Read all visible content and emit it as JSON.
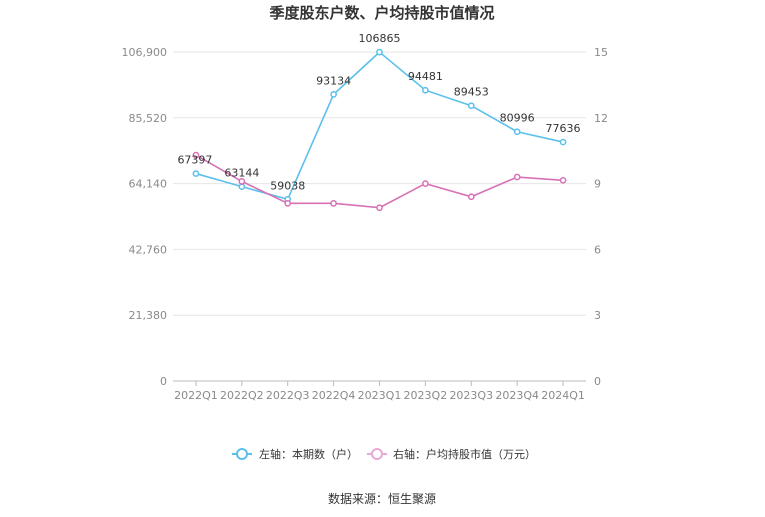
{
  "chart_data": {
    "type": "line",
    "title": "季度股东户数、户均持股市值情况",
    "categories": [
      "2022Q1",
      "2022Q2",
      "2022Q3",
      "2022Q4",
      "2023Q1",
      "2023Q2",
      "2023Q3",
      "2023Q4",
      "2024Q1"
    ],
    "left_axis": {
      "ylim": [
        0,
        106900
      ],
      "ticks": [
        0,
        21380,
        42760,
        64140,
        85520,
        106900
      ],
      "tick_labels": [
        "0",
        "21,380",
        "42,760",
        "64,140",
        "85,520",
        "106,900"
      ]
    },
    "right_axis": {
      "ylim": [
        0,
        15
      ],
      "ticks": [
        0,
        3,
        6,
        9,
        12,
        15
      ],
      "tick_labels": [
        "0",
        "3",
        "6",
        "9",
        "12",
        "15"
      ]
    },
    "series": [
      {
        "name": "左轴：本期数（户）",
        "axis": "left",
        "color": "#5bc0eb",
        "values": [
          67397,
          63144,
          59038,
          93134,
          106865,
          94481,
          89453,
          80996,
          77636
        ],
        "labels": [
          "67397",
          "63144",
          "59038",
          "93134",
          "106865",
          "94481",
          "89453",
          "80996",
          "77636"
        ]
      },
      {
        "name": "右轴：户均持股市值（万元）",
        "axis": "right",
        "color": "#d870b5",
        "values": [
          10.3,
          9.1,
          8.1,
          8.1,
          7.9,
          9.0,
          8.4,
          9.3,
          9.15
        ]
      }
    ],
    "legend_position": "bottom",
    "grid": true
  },
  "footer": {
    "source": "数据来源：恒生聚源"
  }
}
